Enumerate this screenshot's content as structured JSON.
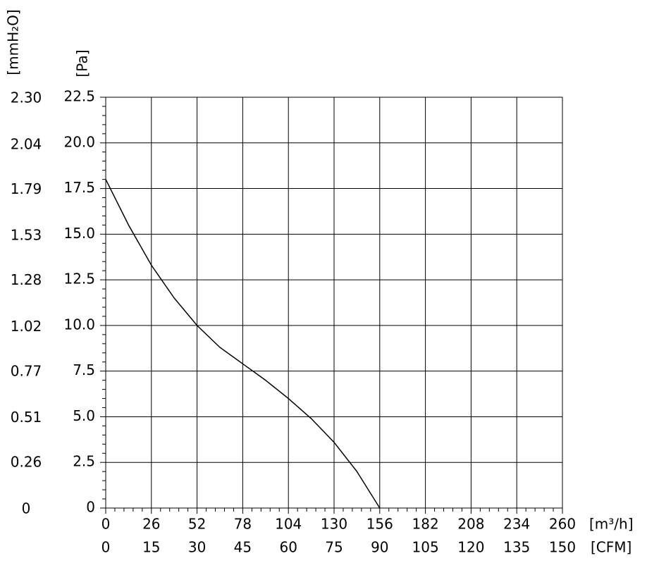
{
  "chart_data": {
    "type": "line",
    "y_label": "[Pa]",
    "y2_label": "[mmH₂O]",
    "x_label": "[m³/h]",
    "x2_label": "[CFM]",
    "x": [
      0,
      13,
      26,
      39,
      52,
      65,
      78,
      91,
      104,
      117,
      130,
      143,
      156
    ],
    "values": [
      18.0,
      15.5,
      13.3,
      11.5,
      10.0,
      8.8,
      7.9,
      7.0,
      6.0,
      4.9,
      3.6,
      2.0,
      0
    ],
    "color": "#000000",
    "xlim": [
      0,
      260
    ],
    "xticks": [
      0,
      26,
      52,
      78,
      104,
      130,
      156,
      182,
      208,
      234,
      260
    ],
    "x2lim": [
      0,
      150
    ],
    "x2ticks": [
      0,
      15,
      30,
      45,
      60,
      75,
      90,
      105,
      120,
      135,
      150
    ],
    "ylim": [
      0,
      22.5
    ],
    "yticks": [
      0,
      2.5,
      {
        "value": 5,
        "label": "5.0"
      },
      7.5,
      {
        "value": 10,
        "label": "10.0"
      },
      12.5,
      {
        "value": 15,
        "label": "15.0"
      },
      17.5,
      {
        "value": 20,
        "label": "20.0"
      },
      22.5
    ],
    "y2lim": [
      0,
      2.3
    ],
    "y2ticks": [
      0,
      0.26,
      0.51,
      0.77,
      1.02,
      1.28,
      1.53,
      1.79,
      2.04,
      {
        "value": 2.3,
        "label": "2.30"
      }
    ],
    "grid": true
  }
}
